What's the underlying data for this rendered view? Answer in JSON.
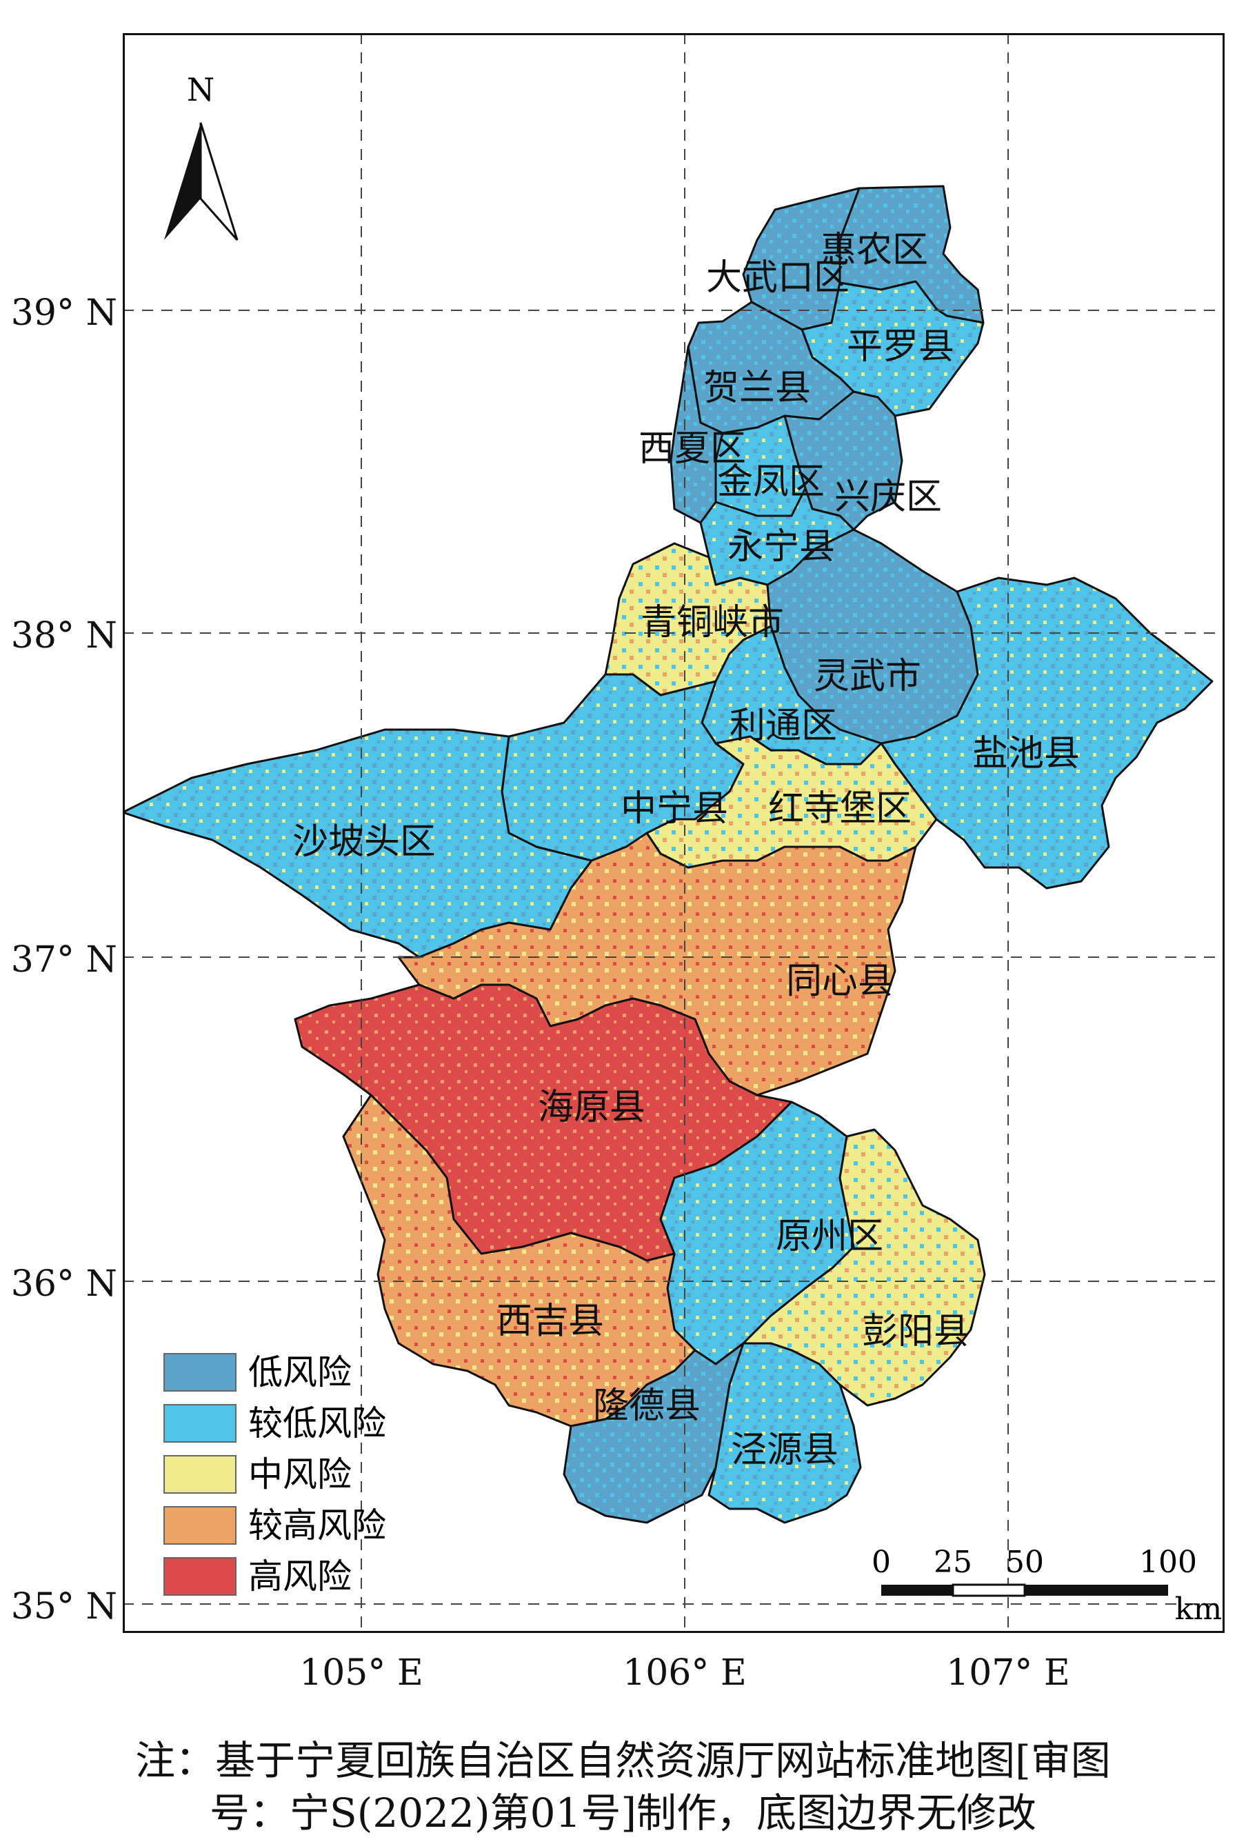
{
  "north_arrow": {
    "label": "N",
    "icon": "north-arrow-icon"
  },
  "lat_labels": [
    "39° N",
    "38° N",
    "37° N",
    "36° N",
    "35° N"
  ],
  "lon_labels": [
    "105° E",
    "106° E",
    "107° E"
  ],
  "districts": [
    {
      "name": "惠农区",
      "risk": "low"
    },
    {
      "name": "大武口区",
      "risk": "low"
    },
    {
      "name": "平罗县",
      "risk": "lower"
    },
    {
      "name": "贺兰县",
      "risk": "low"
    },
    {
      "name": "西夏区",
      "risk": "low"
    },
    {
      "name": "金凤区",
      "risk": "lower"
    },
    {
      "name": "兴庆区",
      "risk": "low"
    },
    {
      "name": "永宁县",
      "risk": "lower"
    },
    {
      "name": "青铜峡市",
      "risk": "medium"
    },
    {
      "name": "灵武市",
      "risk": "low"
    },
    {
      "name": "盐池县",
      "risk": "lower"
    },
    {
      "name": "利通区",
      "risk": "lower"
    },
    {
      "name": "中宁县",
      "risk": "lower"
    },
    {
      "name": "红寺堡区",
      "risk": "medium"
    },
    {
      "name": "沙坡头区",
      "risk": "lower"
    },
    {
      "name": "同心县",
      "risk": "higher"
    },
    {
      "name": "海原县",
      "risk": "high"
    },
    {
      "name": "原州区",
      "risk": "lower"
    },
    {
      "name": "西吉县",
      "risk": "higher"
    },
    {
      "name": "彭阳县",
      "risk": "medium"
    },
    {
      "name": "隆德县",
      "risk": "low"
    },
    {
      "name": "泾源县",
      "risk": "lower"
    }
  ],
  "legend": [
    {
      "key": "low",
      "label": "低风险",
      "color": "#5ba3c9"
    },
    {
      "key": "lower",
      "label": "较低风险",
      "color": "#4fc3e8"
    },
    {
      "key": "medium",
      "label": "中风险",
      "color": "#eeec8c"
    },
    {
      "key": "higher",
      "label": "较高风险",
      "color": "#eda363"
    },
    {
      "key": "high",
      "label": "高风险",
      "color": "#dd4a4a"
    }
  ],
  "scale_bar": {
    "ticks": [
      "0",
      "25",
      "50",
      "100"
    ],
    "unit": "km"
  },
  "note": {
    "line1": "注：基于宁夏回族自治区自然资源厅网站标准地图[审图",
    "line2": "号：宁S(2022)第01号]制作，底图边界无修改"
  }
}
